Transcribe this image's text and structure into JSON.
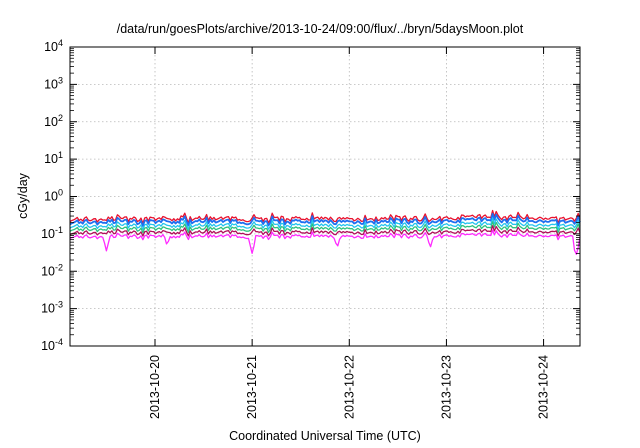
{
  "chart_data": {
    "type": "line",
    "title": "/data/run/goesPlots/archive/2013-10-24/09:00/flux/../bryn/5daysMoon.plot",
    "xlabel": "Coordinated Universal Time (UTC)",
    "ylabel": "cGy/day",
    "yscale": "log",
    "ylim": [
      0.0001,
      10000
    ],
    "y_ticks": [
      {
        "value": 0.0001,
        "base": "10",
        "exp": "-4"
      },
      {
        "value": 0.001,
        "base": "10",
        "exp": "-3"
      },
      {
        "value": 0.01,
        "base": "10",
        "exp": "-2"
      },
      {
        "value": 0.1,
        "base": "10",
        "exp": "-1"
      },
      {
        "value": 1,
        "base": "10",
        "exp": "0"
      },
      {
        "value": 10,
        "base": "10",
        "exp": "1"
      },
      {
        "value": 100,
        "base": "10",
        "exp": "2"
      },
      {
        "value": 1000,
        "base": "10",
        "exp": "3"
      },
      {
        "value": 10000,
        "base": "10",
        "exp": "4"
      }
    ],
    "xlim": [
      "2013-10-19T03:00",
      "2013-10-24T09:00"
    ],
    "x_ticks": [
      "2013-10-20",
      "2013-10-21",
      "2013-10-22",
      "2013-10-23",
      "2013-10-24"
    ],
    "grid": true,
    "series": [
      {
        "color": "#e8112d",
        "base": 0.25,
        "dips": []
      },
      {
        "color": "#1e6ff0",
        "base": 0.21,
        "dips": []
      },
      {
        "color": "#21c4ee",
        "base": 0.165,
        "dips": []
      },
      {
        "color": "#2ec27e",
        "base": 0.135,
        "dips": []
      },
      {
        "color": "#b0105a",
        "base": 0.108,
        "dips": []
      },
      {
        "color": "#ff2bff",
        "base": 0.085,
        "dips": [
          {
            "x": "2013-10-19T12:00",
            "y": 0.035
          },
          {
            "x": "2013-10-20T03:00",
            "y": 0.045
          },
          {
            "x": "2013-10-21T00:00",
            "y": 0.03
          },
          {
            "x": "2013-10-21T21:00",
            "y": 0.04
          },
          {
            "x": "2013-10-22T20:00",
            "y": 0.04
          },
          {
            "x": "2013-10-24T08:00",
            "y": 0.025
          }
        ]
      }
    ]
  }
}
